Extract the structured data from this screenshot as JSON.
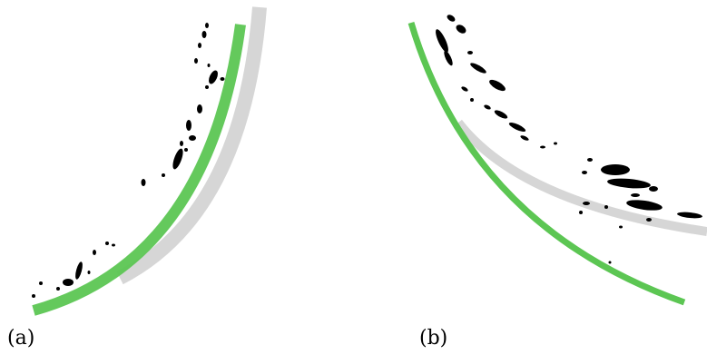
{
  "panels": [
    {
      "label": "(a)"
    },
    {
      "label": "(b)"
    }
  ],
  "colors": {
    "fitted_curve": "#5cc653",
    "reference_curve": "#d6d6d6",
    "blobs": "#000000",
    "background": "#ffffff"
  }
}
